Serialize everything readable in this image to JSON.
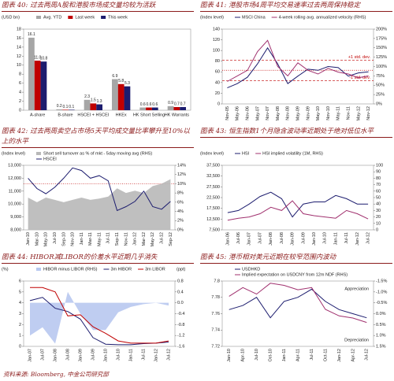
{
  "chart_data": [
    {
      "type": "bar",
      "title": "图表 40: 过去两周A股和港股市场成交量均较为活跃",
      "ylabel": "(USD bn)",
      "categories": [
        "A-share",
        "B-share",
        "HSCEI + HSCEI",
        "HKEx",
        "HK Short Selling",
        "HK Warrants"
      ],
      "series": [
        {
          "name": "Avg. YTD",
          "color": "#a6a6a6",
          "values": [
            16.1,
            0.2,
            2.3,
            6.9,
            0.6,
            0.9
          ],
          "value_labels": [
            "16.1",
            "0.2",
            "2.3",
            "6.9",
            "0.6",
            "0.9"
          ]
        },
        {
          "name": "Last week",
          "color": "#c00000",
          "values": [
            11.0,
            0.1,
            1.5,
            5.8,
            0.6,
            0.7
          ],
          "value_labels": [
            "11.0",
            "0.1",
            "1.5",
            "5.8",
            "0.6",
            "0.7"
          ]
        },
        {
          "name": "This week",
          "color": "#1c1c6e",
          "values": [
            10.8,
            0.1,
            1.3,
            5.3,
            0.6,
            0.7
          ],
          "value_labels": [
            "10.8",
            "0.1",
            "1.3",
            "5.3",
            "0.6",
            "0.7"
          ]
        }
      ],
      "ylim": [
        0,
        18
      ],
      "yticks": [
        0,
        2,
        4,
        6,
        8,
        10,
        12,
        14,
        16,
        18
      ]
    },
    {
      "type": "line",
      "title": "图表 41: 港股市场4周平均交易速率过去两周保持稳定",
      "ylabel": "(Index level)",
      "categories": [
        "Nov-05",
        "May-06",
        "Nov-06",
        "May-07",
        "Nov-07",
        "May-08",
        "Nov-08",
        "May-09",
        "Nov-09",
        "May-10",
        "Nov-10",
        "May-11",
        "Nov-11",
        "May-12",
        "Nov-12"
      ],
      "series": [
        {
          "name": "MSCI China",
          "color": "#1c1c6e",
          "values": [
            30,
            38,
            50,
            75,
            105,
            75,
            38,
            52,
            65,
            63,
            70,
            68,
            52,
            58,
            60
          ]
        },
        {
          "name": "4-week rolling avg. annualized velocity (RHS)",
          "color": "#a0306e",
          "axis": "y2",
          "values": [
            60,
            75,
            90,
            140,
            170,
            100,
            75,
            110,
            90,
            80,
            95,
            85,
            80,
            70,
            75
          ]
        }
      ],
      "ylim": [
        0,
        140
      ],
      "yticks": [
        0,
        20,
        40,
        60,
        80,
        100,
        120,
        140
      ],
      "y2lim": [
        0,
        200
      ],
      "y2ticks": [
        {
          "value": 0,
          "label": "0%"
        },
        {
          "value": 25,
          "label": "25%"
        },
        {
          "value": 50,
          "label": "50%"
        },
        {
          "value": 75,
          "label": "75%"
        },
        {
          "value": 100,
          "label": "100%"
        },
        {
          "value": 125,
          "label": "125%"
        },
        {
          "value": 150,
          "label": "150%"
        },
        {
          "value": 175,
          "label": "175%"
        },
        {
          "value": 200,
          "label": "200%"
        }
      ],
      "hlines": [
        {
          "value": 117,
          "axis": "y2",
          "label": "+1 std. dev."
        },
        {
          "value": 90,
          "axis": "y2"
        },
        {
          "value": 62,
          "axis": "y2",
          "label": "-1 std. dev."
        }
      ]
    },
    {
      "type": "line",
      "title": "图表 42: 过去两周卖空占市场5天平均成交量比率攀升至10%以上的水平",
      "ylabel": "(Index level)",
      "categories": [
        "Jan-10",
        "Mar-10",
        "May-10",
        "Jul-10",
        "Sep-10",
        "Nov-10",
        "Jan-11",
        "Mar-11",
        "May-11",
        "Jul-11",
        "Sep-11",
        "Nov-11",
        "Jan-12",
        "Mar-12",
        "May-12",
        "Jul-12",
        "Sep-12"
      ],
      "series": [
        {
          "name": "Short sell turnover as % of mkt - 5day moving avg (RHS)",
          "color": "#b8b8b8",
          "axis": "y2",
          "style": "area",
          "values": [
            7,
            6,
            7,
            6.5,
            6,
            6.5,
            7,
            6.5,
            6.8,
            7.2,
            9,
            8,
            8.5,
            8,
            9.5,
            10,
            11
          ]
        },
        {
          "name": "HSCEI",
          "color": "#1c1c6e",
          "values": [
            12000,
            11200,
            10800,
            11300,
            12000,
            12800,
            12600,
            12000,
            12200,
            11800,
            9500,
            9800,
            10200,
            11000,
            9800,
            9600,
            10200
          ]
        }
      ],
      "ylim": [
        8000,
        13000
      ],
      "yticks": [
        {
          "value": 8000,
          "label": "8,000"
        },
        {
          "value": 9000,
          "label": "9,000"
        },
        {
          "value": 10000,
          "label": "10,000"
        },
        {
          "value": 11000,
          "label": "11,000"
        },
        {
          "value": 12000,
          "label": "12,000"
        },
        {
          "value": 13000,
          "label": "13,000"
        }
      ],
      "y2lim": [
        0,
        14
      ],
      "y2ticks": [
        {
          "value": 0,
          "label": "0%"
        },
        {
          "value": 2,
          "label": "2%"
        },
        {
          "value": 4,
          "label": "4%"
        },
        {
          "value": 6,
          "label": "6%"
        },
        {
          "value": 8,
          "label": "8%"
        },
        {
          "value": 10,
          "label": "10%"
        },
        {
          "value": 12,
          "label": "12%"
        },
        {
          "value": 14,
          "label": "14%"
        }
      ],
      "hlines": [
        {
          "value": 10,
          "axis": "y2"
        }
      ]
    },
    {
      "type": "line",
      "title": "图表 43: 恒生指数1个月隐含波动率近期处于绝对低位水平",
      "ylabel": "(Index level)",
      "categories": [
        "Jan-06",
        "Jul-06",
        "Jan-07",
        "Jul-07",
        "Jan-08",
        "Jul-08",
        "Jan-09",
        "Jul-09",
        "Jan-10",
        "Jul-10",
        "Jan-11",
        "Jul-11",
        "Jan-12",
        "Jul-12"
      ],
      "series": [
        {
          "name": "HSI",
          "color": "#1c1c6e",
          "values": [
            15500,
            16500,
            19500,
            23000,
            25000,
            22000,
            13500,
            19500,
            20500,
            20500,
            23500,
            22000,
            19500,
            19500
          ]
        },
        {
          "name": "HSI implied volatility (1M, RHS)",
          "color": "#a0306e",
          "axis": "y2",
          "values": [
            15,
            18,
            20,
            25,
            35,
            30,
            45,
            25,
            22,
            20,
            18,
            30,
            25,
            17
          ]
        }
      ],
      "ylim": [
        7500,
        37500
      ],
      "yticks": [
        {
          "value": 7500,
          "label": "7,500"
        },
        {
          "value": 12500,
          "label": "12,500"
        },
        {
          "value": 17500,
          "label": "17,500"
        },
        {
          "value": 22500,
          "label": "22,500"
        },
        {
          "value": 27500,
          "label": "27,500"
        },
        {
          "value": 32500,
          "label": "32,500"
        },
        {
          "value": 37500,
          "label": "37,500"
        }
      ],
      "y2lim": [
        0,
        100
      ],
      "y2ticks": [
        0,
        10,
        20,
        30,
        40,
        50,
        60,
        70,
        80,
        90,
        100
      ]
    },
    {
      "type": "line",
      "title": "图表 44: HIBOR减LIBOR的价差水平近期几乎消失",
      "ylabel": "(%)",
      "y2label": "(ppt)",
      "categories": [
        "Jan-07",
        "Jul-07",
        "Jan-08",
        "Jul-08",
        "Jan-09",
        "Jul-09",
        "Jan-10",
        "Jul-10",
        "Jan-11",
        "Jul-11",
        "Jan-12",
        "Jul-12"
      ],
      "series": [
        {
          "name": "HIBOR minus LIBOR (RHS)",
          "color": "#b8c8f0",
          "axis": "y2",
          "style": "area",
          "values": [
            -1.2,
            -0.9,
            -1.5,
            0.4,
            -0.4,
            -1.0,
            -1.0,
            -0.35,
            -0.15,
            -0.05,
            0,
            -0.1
          ]
        },
        {
          "name": "3m HIBOR",
          "color": "#1c1c6e",
          "values": [
            4.2,
            4.5,
            3.5,
            3.2,
            2.5,
            0.8,
            0.2,
            0.15,
            0.15,
            0.25,
            0.3,
            0.4
          ]
        },
        {
          "name": "3m LIBOR",
          "color": "#c00000",
          "values": [
            5.4,
            5.4,
            5.0,
            2.8,
            2.9,
            1.8,
            1.2,
            0.5,
            0.3,
            0.3,
            0.3,
            0.5
          ]
        }
      ],
      "ylim": [
        0,
        6
      ],
      "yticks": [
        0,
        1,
        2,
        3,
        4,
        5,
        6
      ],
      "y2lim": [
        -1.6,
        0.8
      ],
      "y2ticks": [
        -1.6,
        -1.2,
        -0.8,
        -0.4,
        {
          "value": 0,
          "label": "0.0"
        },
        0.4,
        0.8
      ]
    },
    {
      "type": "line",
      "title": "图表 45: 港币相对美元近期在较窄范围内波动",
      "categories": [
        "Jan-10",
        "Apr-10",
        "Jul-10",
        "Oct-10",
        "Jan-11",
        "Apr-11",
        "Jul-11",
        "Oct-11",
        "Jan-12",
        "Apr-12",
        "Jul-12"
      ],
      "series": [
        {
          "name": "USDHKD",
          "color": "#1c1c6e",
          "values": [
            7.765,
            7.77,
            7.78,
            7.755,
            7.775,
            7.78,
            7.79,
            7.775,
            7.765,
            7.76,
            7.755
          ]
        },
        {
          "name": "Implied expectation on USDCNY from 12m NDF (RHS)",
          "color": "#a0306e",
          "axis": "y2",
          "values": [
            -0.8,
            -1.2,
            -0.9,
            -1.4,
            -1.3,
            -1.1,
            -1.2,
            -0.2,
            0.1,
            0.2,
            0.4
          ]
        }
      ],
      "ylim": [
        7.72,
        7.8
      ],
      "yticks": [
        7.72,
        7.74,
        7.76,
        7.78,
        7.8
      ],
      "y2lim": [
        1.5,
        -1.5
      ],
      "y2ticks": [
        {
          "value": -1.5,
          "label": "-1.5%"
        },
        {
          "value": -1,
          "label": "-1.0%"
        },
        {
          "value": -0.5,
          "label": "-0.5%"
        },
        {
          "value": 0,
          "label": "0.0%"
        },
        {
          "value": 0.5,
          "label": "0.5%"
        },
        {
          "value": 1,
          "label": "1.0%"
        },
        {
          "value": 1.5,
          "label": "1.5%"
        }
      ],
      "annotations": [
        "Appreciation",
        "Depreciation"
      ]
    }
  ],
  "source": "资料来源: Bloomberg, 中金公司研究部"
}
